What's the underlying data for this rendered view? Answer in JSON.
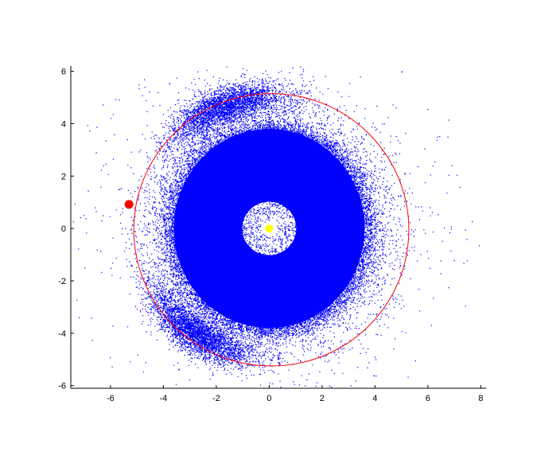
{
  "chart_data": {
    "type": "scatter",
    "title": "",
    "xlabel": "",
    "ylabel": "",
    "xlim": [
      -7.5,
      8.2
    ],
    "ylim": [
      -6.1,
      6.2
    ],
    "xticks": [
      -6,
      -4,
      -2,
      0,
      2,
      4,
      6,
      8
    ],
    "yticks": [
      -6,
      -4,
      -2,
      0,
      2,
      4,
      6
    ],
    "grid": false,
    "series": [
      {
        "kind": "particle-cloud",
        "marker_color": "#0000ff",
        "center": [
          0,
          0
        ],
        "hole_radius": 1.2,
        "dense_disk_radius": [
          3.6,
          3.8
        ],
        "halo_extent": 6.0
      },
      {
        "kind": "circle",
        "line_color": "#ff0000",
        "center": [
          0.08,
          -0.05
        ],
        "radius": 5.2
      },
      {
        "kind": "point",
        "marker_color": "#ff0000",
        "x": -5.3,
        "y": 0.92
      },
      {
        "kind": "point",
        "marker_color": "#ffff00",
        "x": 0,
        "y": 0
      }
    ]
  }
}
